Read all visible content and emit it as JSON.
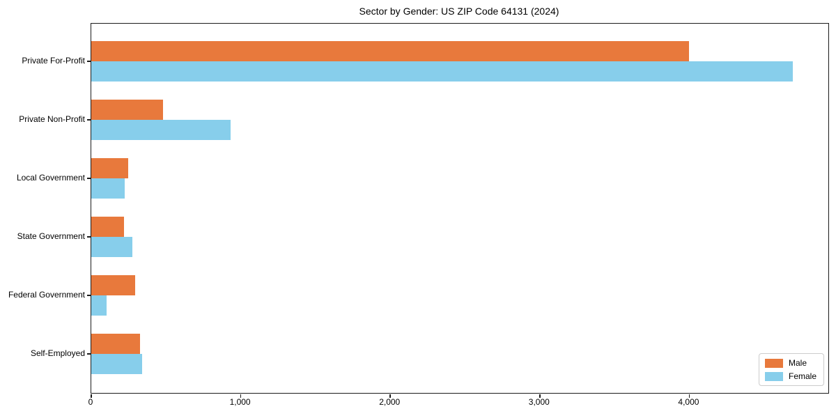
{
  "chart_data": {
    "type": "bar",
    "orientation": "horizontal",
    "title": "Sector by Gender: US ZIP Code 64131 (2024)",
    "categories": [
      "Private For-Profit",
      "Private Non-Profit",
      "Local Government",
      "State Government",
      "Federal Government",
      "Self-Employed"
    ],
    "series": [
      {
        "name": "Male",
        "color": "#e8793c",
        "values": [
          4000,
          480,
          247,
          220,
          295,
          325
        ]
      },
      {
        "name": "Female",
        "color": "#87ceeb",
        "values": [
          4690,
          930,
          225,
          275,
          100,
          340
        ]
      }
    ],
    "xlim": [
      0,
      4930
    ],
    "x_ticks": [
      0,
      1000,
      2000,
      3000,
      4000
    ],
    "x_tick_labels": [
      "0",
      "1,000",
      "2,000",
      "3,000",
      "4,000"
    ],
    "xlabel": "",
    "ylabel": "",
    "grid": false,
    "legend_position": "lower right",
    "background_color": "#ffffff",
    "axis_color": "#1a1a1a"
  }
}
